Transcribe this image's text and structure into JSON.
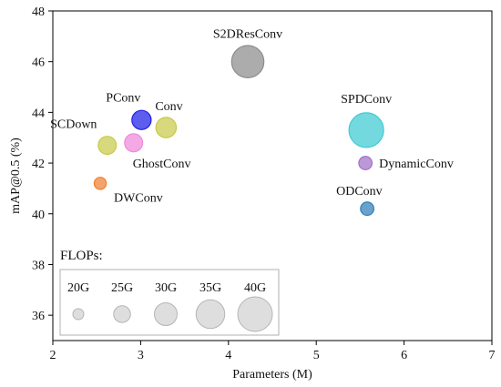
{
  "chart_data": {
    "type": "scatter",
    "title": "",
    "xlabel": "Parameters (M)",
    "ylabel": "mAP@0.5 (%)",
    "xlim": [
      2,
      7
    ],
    "ylim": [
      35,
      48
    ],
    "xticks": [
      2,
      3,
      4,
      5,
      6,
      7
    ],
    "yticks": [
      36,
      38,
      40,
      42,
      44,
      46,
      48
    ],
    "grid": false,
    "points": [
      {
        "label": "S2DResConv",
        "x": 4.22,
        "y": 46.0,
        "flops": 38,
        "color": "#8c8c8c"
      },
      {
        "label": "SPDConv",
        "x": 5.57,
        "y": 43.3,
        "flops": 40,
        "color": "#3fcbd3"
      },
      {
        "label": "PConv",
        "x": 3.01,
        "y": 43.7,
        "flops": 27,
        "color": "#1f1fe8"
      },
      {
        "label": "Conv",
        "x": 3.29,
        "y": 43.4,
        "flops": 28,
        "color": "#c9c94a"
      },
      {
        "label": "SCDown",
        "x": 2.62,
        "y": 42.7,
        "flops": 26,
        "color": "#c9c94a"
      },
      {
        "label": "GhostConv",
        "x": 2.92,
        "y": 42.8,
        "flops": 26,
        "color": "#ee88dd"
      },
      {
        "label": "DynamicConv",
        "x": 5.56,
        "y": 42.0,
        "flops": 22,
        "color": "#a071c6"
      },
      {
        "label": "DWConv",
        "x": 2.54,
        "y": 41.2,
        "flops": 21,
        "color": "#f08030"
      },
      {
        "label": "ODConv",
        "x": 5.58,
        "y": 40.2,
        "flops": 22,
        "color": "#2f7fba"
      }
    ],
    "legend": {
      "title": "FLOPs:",
      "placement": "bottom-left",
      "entries": [
        {
          "label": "20G",
          "flops": 20
        },
        {
          "label": "25G",
          "flops": 25
        },
        {
          "label": "30G",
          "flops": 30
        },
        {
          "label": "35G",
          "flops": 35
        },
        {
          "label": "40G",
          "flops": 40
        }
      ]
    }
  }
}
